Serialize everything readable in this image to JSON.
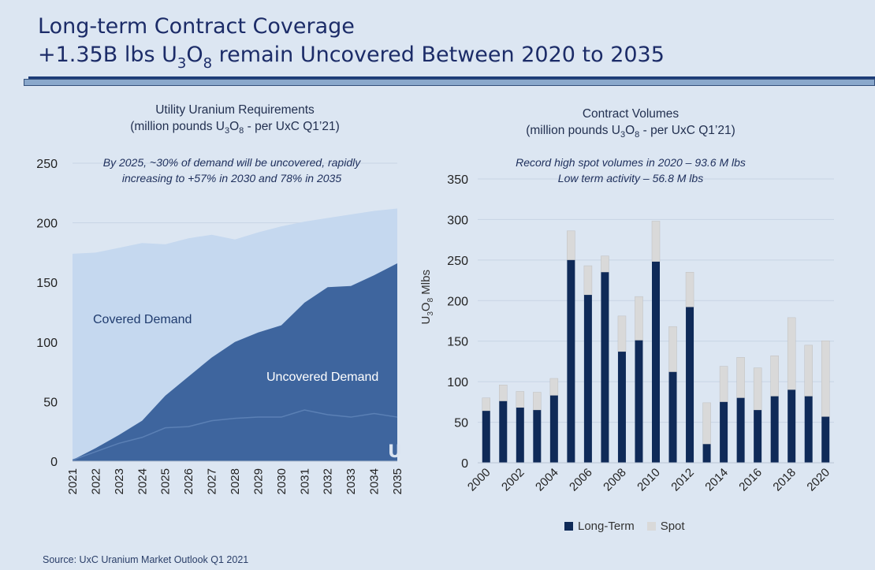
{
  "header": {
    "title_line1": "Long-term Contract Coverage",
    "title_line2_pre": "+1.35B lbs U",
    "title_line2_sub1": "3",
    "title_line2_mid": "O",
    "title_line2_sub2": "8",
    "title_line2_post": " remain Uncovered Between 2020 to 2035"
  },
  "left_chart": {
    "title_line1": "Utility Uranium Requirements",
    "title_line2_pre": "(million pounds U",
    "title_line2_sub1": "3",
    "title_line2_mid": "O",
    "title_line2_sub2": "8",
    "title_line2_post": " - per UxC Q1’21)",
    "annotation_line1": "By 2025, ~30% of demand will be uncovered, rapidly",
    "annotation_line2": "increasing to +57% in 2030 and 78% in 2035",
    "covered_label": "Covered Demand",
    "uncovered_label": "Uncovered Demand",
    "logo_text": "U"
  },
  "right_chart": {
    "title_line1": "Contract Volumes",
    "title_line2_pre": "(million pounds U",
    "title_line2_sub1": "3",
    "title_line2_mid": "O",
    "title_line2_sub2": "8",
    "title_line2_post": " - per UxC Q1’21)",
    "annotation_line1": "Record high spot volumes in 2020 – 93.6 M lbs",
    "annotation_line2": "Low term activity – 56.8 M lbs",
    "ylabel_pre": "U",
    "ylabel_sub1": "3",
    "ylabel_mid": "O",
    "ylabel_sub2": "8",
    "ylabel_post": " Mlbs",
    "legend": [
      "Long-Term",
      "Spot"
    ]
  },
  "source": "Source: UxC Uranium Market Outlook Q1 2021",
  "colors": {
    "background": "#dce6f2",
    "covered": "#c5d8ef",
    "uncovered": "#3e659e",
    "uncovered_line": "#5b80b5",
    "long_term": "#0f2a58",
    "spot": "#d9d9d9",
    "title": "#1c2c68"
  },
  "chart_data": [
    {
      "type": "area",
      "title": "Utility Uranium Requirements (million pounds U3O8 - per UxC Q1’21)",
      "x": [
        2021,
        2022,
        2023,
        2024,
        2025,
        2026,
        2027,
        2028,
        2029,
        2030,
        2031,
        2032,
        2033,
        2034,
        2035
      ],
      "series": [
        {
          "name": "Total Requirements",
          "values": [
            174,
            175,
            179,
            183,
            182,
            187,
            190,
            186,
            192,
            197,
            201,
            204,
            207,
            210,
            212
          ]
        },
        {
          "name": "Uncovered Demand",
          "values": [
            1,
            11,
            22,
            34,
            55,
            71,
            87,
            100,
            108,
            114,
            133,
            146,
            147,
            156,
            166
          ]
        },
        {
          "name": "Uncovered (inner line)",
          "values": [
            1,
            8,
            15,
            20,
            28,
            29,
            34,
            36,
            37,
            37,
            43,
            39,
            37,
            40,
            37
          ]
        }
      ],
      "xlabel": "",
      "ylabel": "",
      "ylim": [
        0,
        250
      ],
      "yticks": [
        0,
        50,
        100,
        150,
        200,
        250
      ]
    },
    {
      "type": "bar",
      "stacked": true,
      "title": "Contract Volumes (million pounds U3O8 - per UxC Q1’21)",
      "categories": [
        "2000",
        "2001",
        "2002",
        "2003",
        "2004",
        "2005",
        "2006",
        "2007",
        "2008",
        "2009",
        "2010",
        "2011",
        "2012",
        "2013",
        "2014",
        "2015",
        "2016",
        "2017",
        "2018",
        "2019",
        "2020"
      ],
      "tick_labels": [
        "2000",
        "2002",
        "2004",
        "2006",
        "2008",
        "2010",
        "2012",
        "2014",
        "2016",
        "2018",
        "2020"
      ],
      "series": [
        {
          "name": "Long-Term",
          "values": [
            64,
            76,
            68,
            65,
            83,
            250,
            207,
            235,
            137,
            151,
            248,
            112,
            192,
            23,
            75,
            80,
            65,
            82,
            90,
            82,
            56.8
          ]
        },
        {
          "name": "Spot",
          "values": [
            16,
            20,
            20,
            22,
            21,
            36,
            36,
            20,
            44,
            54,
            50,
            56,
            43,
            51,
            44,
            50,
            52,
            50,
            89,
            63,
            93.6
          ]
        }
      ],
      "xlabel": "",
      "ylabel": "U3O8 Mlbs",
      "ylim": [
        0,
        350
      ],
      "yticks": [
        0,
        50,
        100,
        150,
        200,
        250,
        300,
        350
      ],
      "legend": "bottom"
    }
  ]
}
